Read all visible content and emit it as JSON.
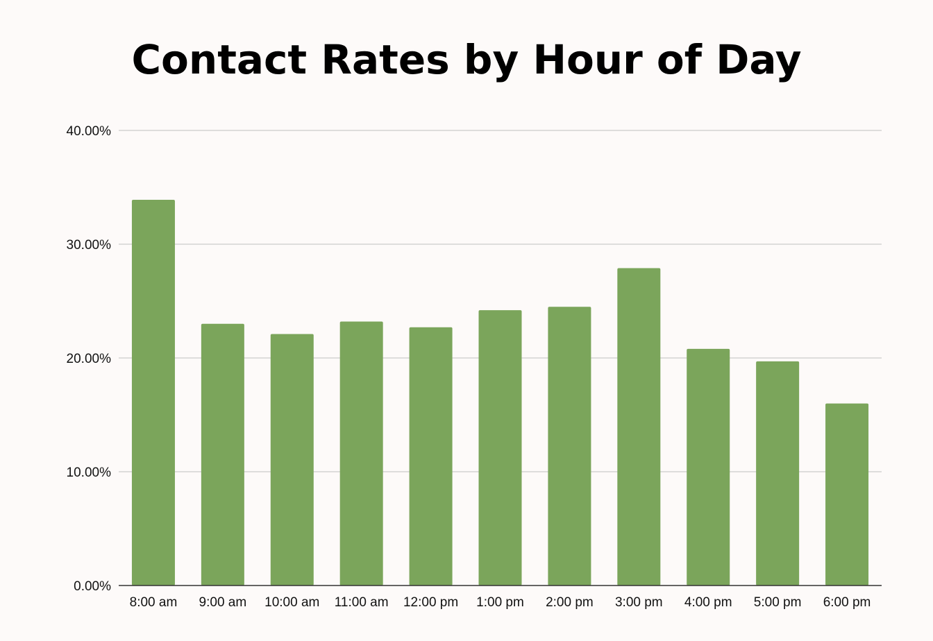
{
  "chart_data": {
    "type": "bar",
    "title": "Contact Rates by Hour of Day",
    "xlabel": "",
    "ylabel": "",
    "categories": [
      "8:00 am",
      "9:00 am",
      "10:00 am",
      "11:00 am",
      "12:00 pm",
      "1:00 pm",
      "2:00 pm",
      "3:00 pm",
      "4:00 pm",
      "5:00 pm",
      "6:00 pm"
    ],
    "values": [
      33.9,
      23.0,
      22.1,
      23.2,
      22.7,
      24.2,
      24.5,
      27.9,
      20.8,
      19.7,
      16.0
    ],
    "ylim": [
      0,
      40
    ],
    "yticks": [
      0,
      10,
      20,
      30,
      40
    ],
    "ytick_labels": [
      "0.00%",
      "10.00%",
      "20.00%",
      "30.00%",
      "40.00%"
    ],
    "grid": true,
    "legend": "none",
    "bar_color": "#7ba55b",
    "grid_color": "#cccccc",
    "axis_color": "#333333"
  }
}
